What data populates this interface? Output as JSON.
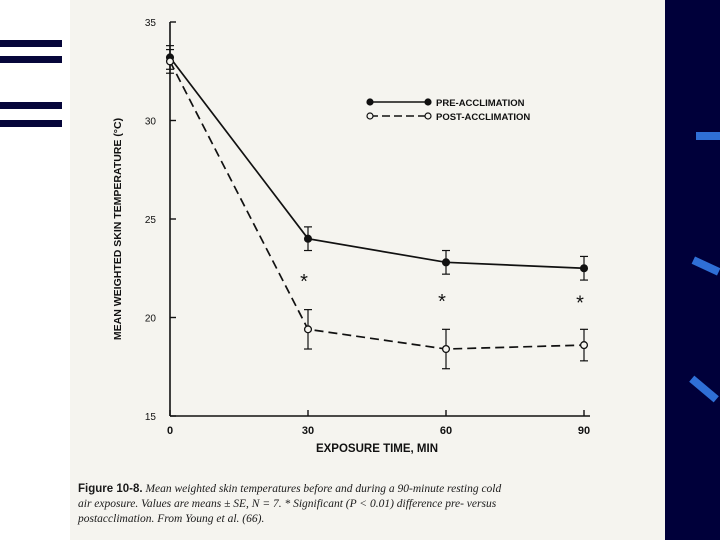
{
  "chart_data": {
    "type": "line",
    "title": "",
    "xlabel": "EXPOSURE TIME, MIN",
    "ylabel": "MEAN WEIGHTED SKIN TEMPERATURE (°C)",
    "x": [
      0,
      30,
      60,
      90
    ],
    "xticks": [
      "0",
      "30",
      "60",
      "90"
    ],
    "yticks": [
      "35",
      "30",
      "25",
      "20",
      "15"
    ],
    "ylim": [
      15,
      35
    ],
    "xlim": [
      0,
      90
    ],
    "legend_position": "top-right",
    "series": [
      {
        "name": "PRE-ACCLIMATION",
        "marker": "filled-circle",
        "line": "solid",
        "values": [
          33.2,
          24.0,
          22.8,
          22.5
        ],
        "errors": [
          0.6,
          0.6,
          0.6,
          0.6
        ]
      },
      {
        "name": "POST-ACCLIMATION",
        "marker": "open-circle",
        "line": "dashed",
        "values": [
          33.0,
          19.4,
          18.4,
          18.6
        ],
        "errors": [
          0.6,
          1.0,
          1.0,
          0.8
        ]
      }
    ],
    "significance_marks": [
      {
        "x": 30,
        "y": 21.9,
        "label": "*"
      },
      {
        "x": 60,
        "y": 20.9,
        "label": "*"
      },
      {
        "x": 90,
        "y": 20.8,
        "label": "*"
      }
    ]
  },
  "caption": {
    "label": "Figure 10-8.",
    "line1": "Mean weighted skin temperatures before and during a 90-minute resting cold",
    "line2": "air exposure. Values are means ± SE, N = 7. * Significant (P < 0.01) difference pre- versus",
    "line3": "postacclimation. From Young et al. (66)."
  },
  "colors": {
    "ink": "#111111",
    "paper": "#f5f4ef",
    "band": "#00003a",
    "accent": "#2f6fd6"
  }
}
